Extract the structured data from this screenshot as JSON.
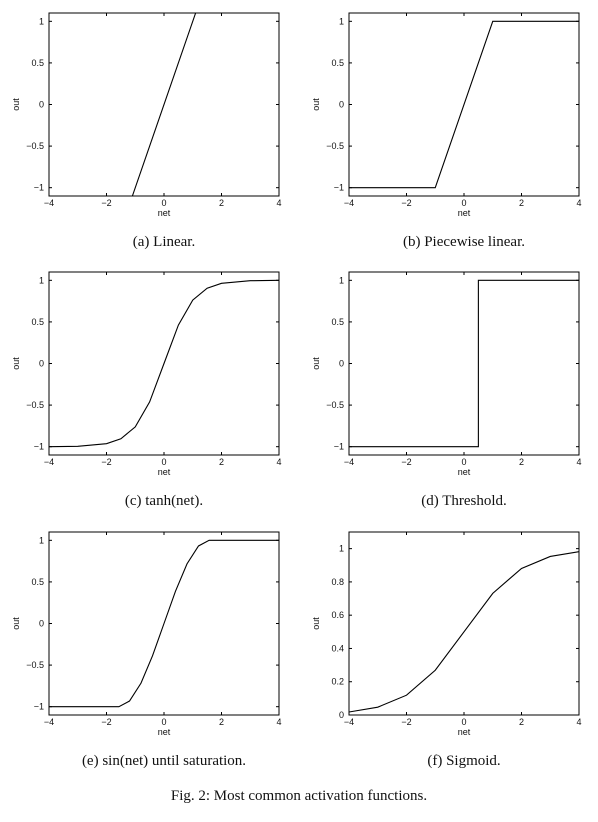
{
  "figure": {
    "caption": "Fig. 2: Most common activation functions."
  },
  "chart_data": [
    {
      "type": "line",
      "function": "linear",
      "caption": "(a) Linear.",
      "xlabel": "net",
      "ylabel": "out",
      "xlim": [
        -4,
        4
      ],
      "ylim": [
        -1.1,
        1.1
      ],
      "xticks": [
        -4,
        -2,
        0,
        2,
        4
      ],
      "yticks": [
        -1,
        -0.5,
        0,
        0.5,
        1
      ],
      "series": [
        {
          "x": [
            -1.1,
            1.1
          ],
          "y": [
            -1.1,
            1.1
          ]
        }
      ]
    },
    {
      "type": "line",
      "function": "piecewise-linear",
      "caption": "(b) Piecewise linear.",
      "xlabel": "net",
      "ylabel": "out",
      "xlim": [
        -4,
        4
      ],
      "ylim": [
        -1.1,
        1.1
      ],
      "xticks": [
        -4,
        -2,
        0,
        2,
        4
      ],
      "yticks": [
        -1,
        -0.5,
        0,
        0.5,
        1
      ],
      "series": [
        {
          "x": [
            -4,
            -1,
            1,
            4
          ],
          "y": [
            -1,
            -1,
            1,
            1
          ]
        }
      ]
    },
    {
      "type": "line",
      "function": "tanh",
      "caption": "(c) tanh(net).",
      "xlabel": "net",
      "ylabel": "out",
      "xlim": [
        -4,
        4
      ],
      "ylim": [
        -1.1,
        1.1
      ],
      "xticks": [
        -4,
        -2,
        0,
        2,
        4
      ],
      "yticks": [
        -1,
        -0.5,
        0,
        0.5,
        1
      ],
      "series": [
        {
          "x": [
            -4,
            -3,
            -2,
            -1.5,
            -1,
            -0.5,
            0,
            0.5,
            1,
            1.5,
            2,
            3,
            4
          ],
          "y": [
            -1,
            -0.995,
            -0.964,
            -0.905,
            -0.762,
            -0.462,
            0,
            0.462,
            0.762,
            0.905,
            0.964,
            0.995,
            1
          ]
        }
      ]
    },
    {
      "type": "line",
      "function": "threshold",
      "caption": "(d) Threshold.",
      "xlabel": "net",
      "ylabel": "out",
      "xlim": [
        -4,
        4
      ],
      "ylim": [
        -1.1,
        1.1
      ],
      "xticks": [
        -4,
        -2,
        0,
        2,
        4
      ],
      "yticks": [
        -1,
        -0.5,
        0,
        0.5,
        1
      ],
      "series": [
        {
          "x": [
            -4,
            0.5,
            0.5,
            4
          ],
          "y": [
            -1,
            -1,
            1,
            1
          ]
        }
      ]
    },
    {
      "type": "line",
      "function": "sin-saturation",
      "caption": "(e) sin(net) until saturation.",
      "xlabel": "net",
      "ylabel": "out",
      "xlim": [
        -4,
        4
      ],
      "ylim": [
        -1.1,
        1.1
      ],
      "xticks": [
        -4,
        -2,
        0,
        2,
        4
      ],
      "yticks": [
        -1,
        -0.5,
        0,
        0.5,
        1
      ],
      "series": [
        {
          "x": [
            -4,
            -1.57,
            -1.2,
            -0.8,
            -0.4,
            0,
            0.4,
            0.8,
            1.2,
            1.57,
            4
          ],
          "y": [
            -1,
            -1,
            -0.932,
            -0.717,
            -0.389,
            0,
            0.389,
            0.717,
            0.932,
            1,
            1
          ]
        }
      ]
    },
    {
      "type": "line",
      "function": "sigmoid",
      "caption": "(f) Sigmoid.",
      "xlabel": "net",
      "ylabel": "out",
      "xlim": [
        -4,
        4
      ],
      "ylim": [
        0,
        1.1
      ],
      "xticks": [
        -4,
        -2,
        0,
        2,
        4
      ],
      "yticks": [
        0,
        0.2,
        0.4,
        0.6,
        0.8,
        1
      ],
      "series": [
        {
          "x": [
            -4,
            -3,
            -2,
            -1,
            0,
            1,
            2,
            3,
            4
          ],
          "y": [
            0.018,
            0.047,
            0.119,
            0.269,
            0.5,
            0.731,
            0.881,
            0.953,
            0.982
          ]
        }
      ]
    }
  ]
}
